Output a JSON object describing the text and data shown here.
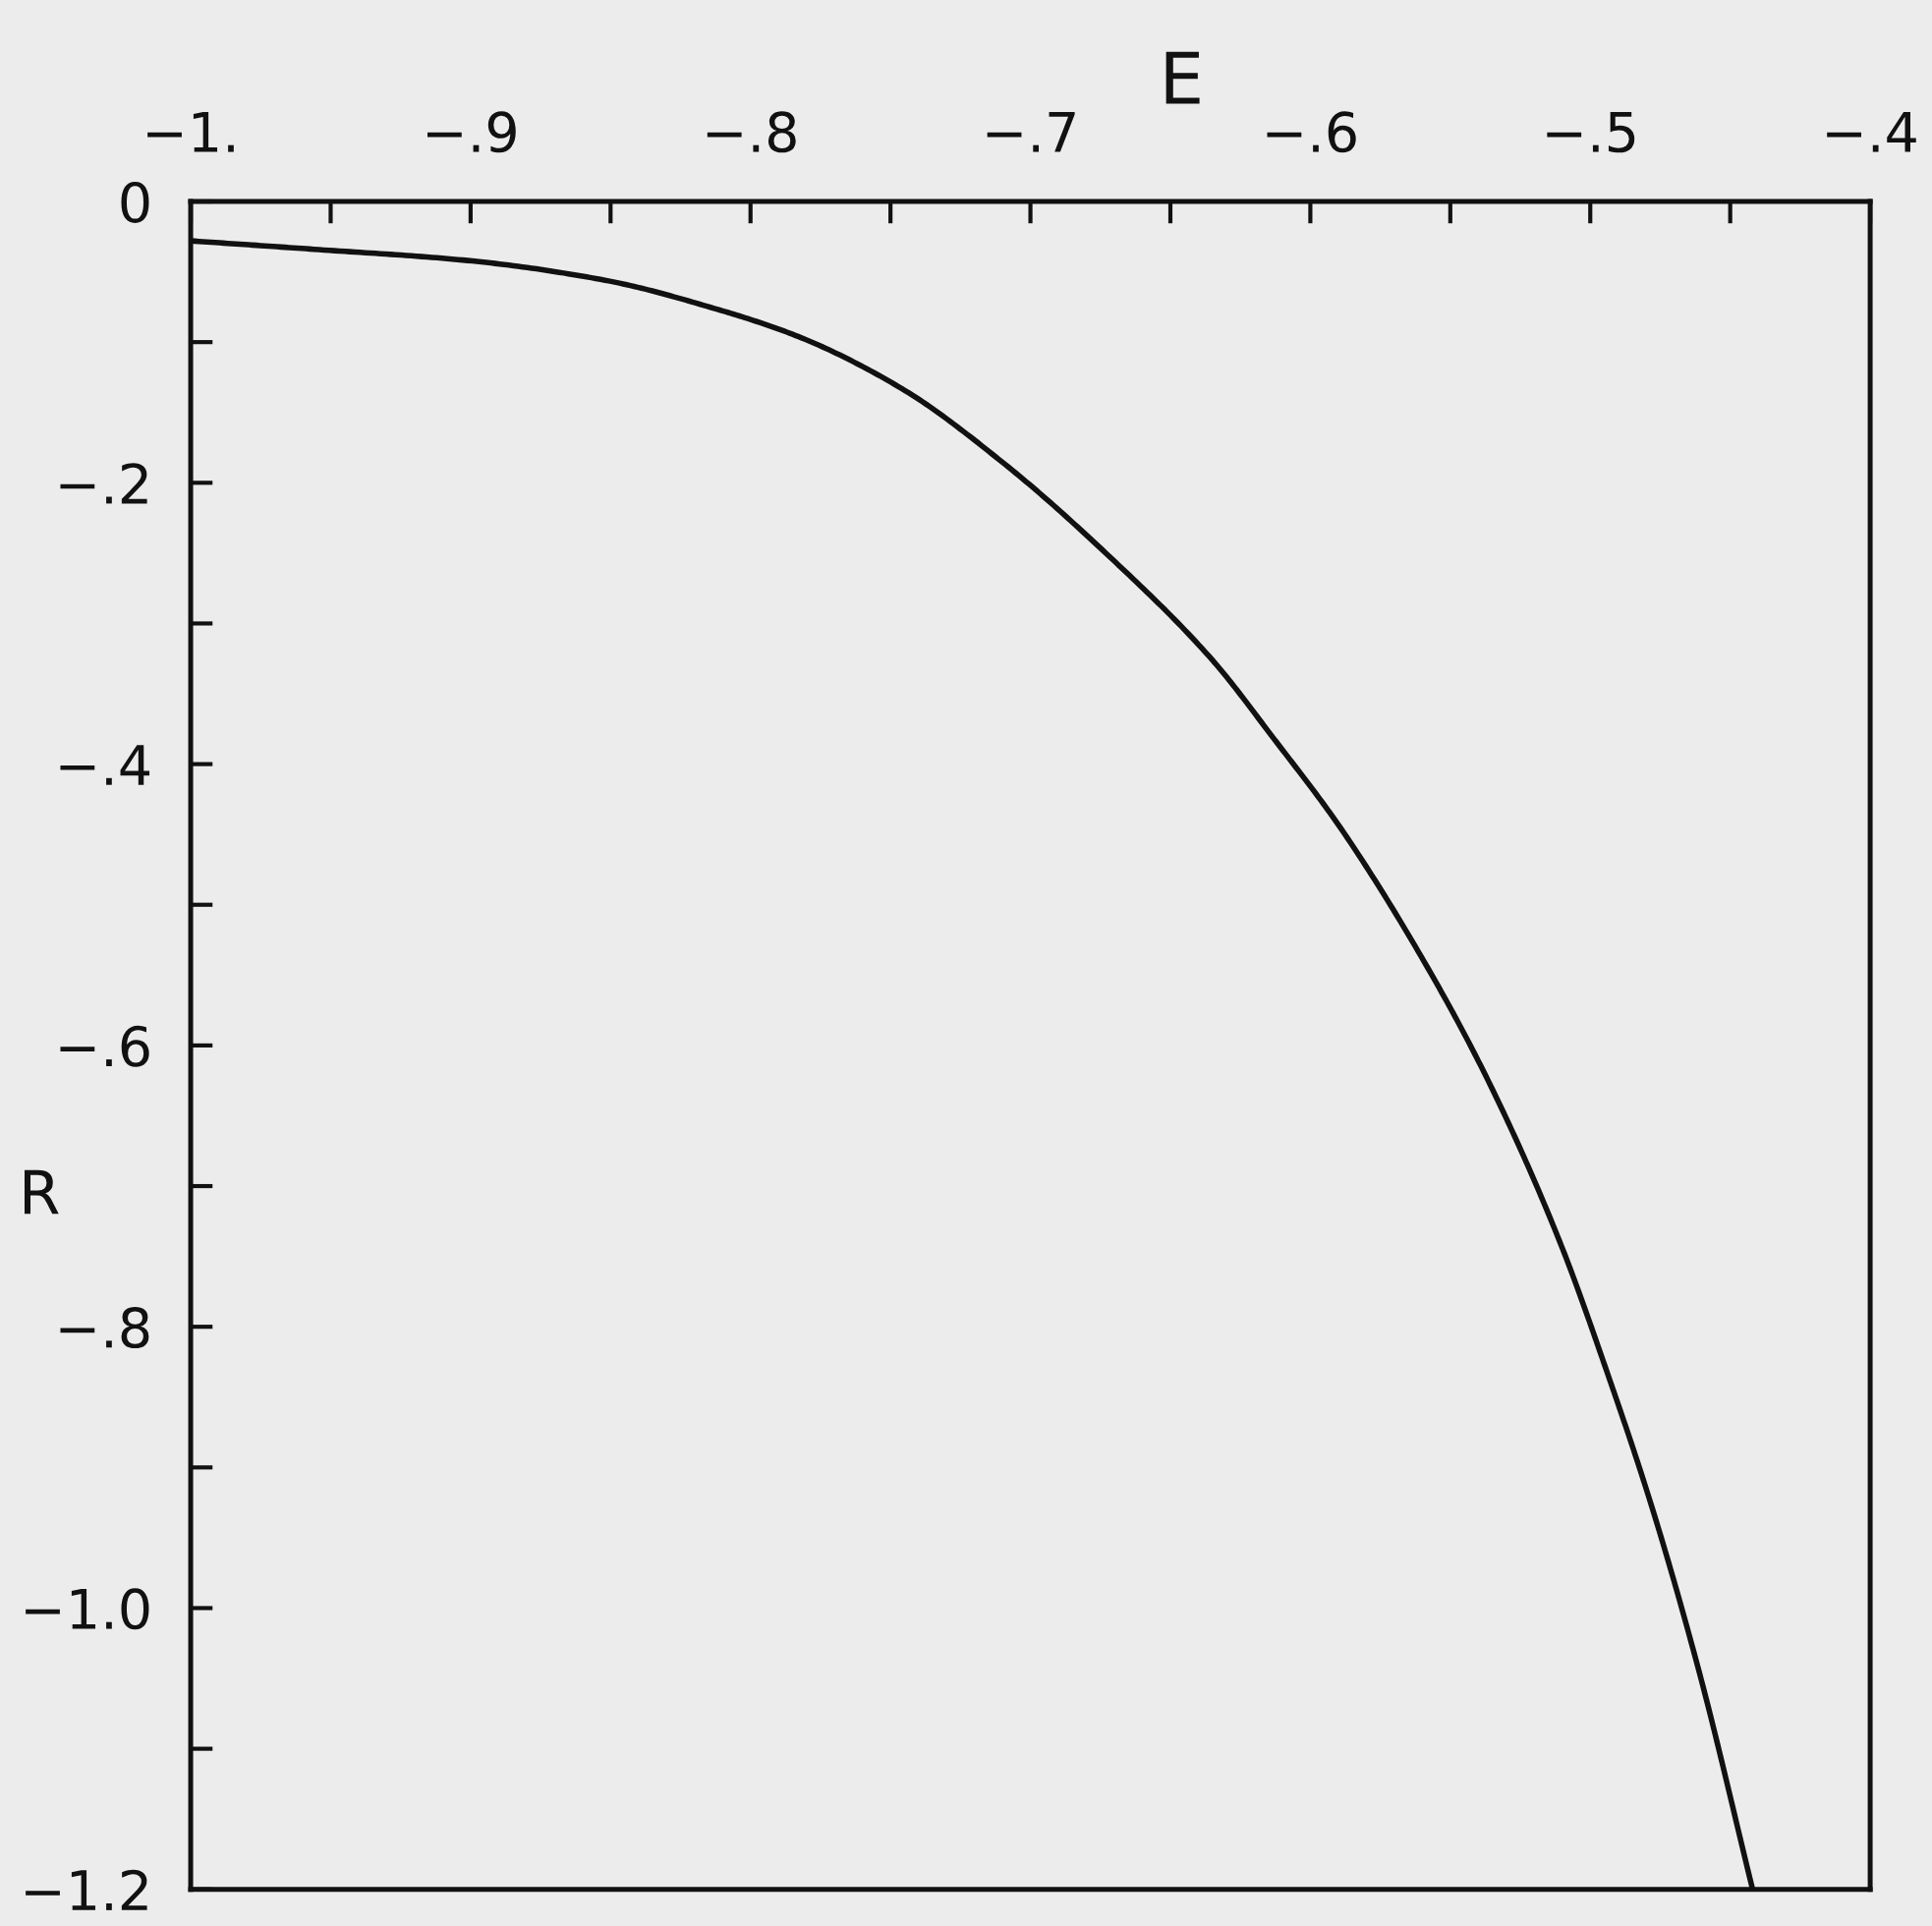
{
  "chart_data": {
    "type": "line",
    "xlabel": "E",
    "ylabel": "R",
    "line_style": "solid",
    "x": [
      -1.0,
      -0.956,
      -0.901,
      -0.852,
      -0.813,
      -0.783,
      -0.746,
      -0.709,
      -0.672,
      -0.635,
      -0.613,
      -0.589,
      -0.556,
      -0.535,
      -0.511,
      -0.493,
      -0.478,
      -0.461,
      -0.442
    ],
    "series": [
      {
        "color": "#111111",
        "values": [
          -0.028,
          -0.034,
          -0.042,
          -0.056,
          -0.076,
          -0.096,
          -0.133,
          -0.187,
          -0.252,
          -0.326,
          -0.382,
          -0.446,
          -0.552,
          -0.631,
          -0.739,
          -0.838,
          -0.928,
          -1.046,
          -1.2
        ]
      }
    ],
    "xlim": [
      -1.0,
      -0.4
    ],
    "xticks": [
      {
        "value": -1.0,
        "label": "−1."
      },
      {
        "value": -0.95,
        "label": null
      },
      {
        "value": -0.9,
        "label": "−.9"
      },
      {
        "value": -0.85,
        "label": null
      },
      {
        "value": -0.8,
        "label": "−.8"
      },
      {
        "value": -0.75,
        "label": null
      },
      {
        "value": -0.7,
        "label": "−.7"
      },
      {
        "value": -0.65,
        "label": null
      },
      {
        "value": -0.6,
        "label": "−.6"
      },
      {
        "value": -0.55,
        "label": null
      },
      {
        "value": -0.5,
        "label": "−.5"
      },
      {
        "value": -0.45,
        "label": null
      },
      {
        "value": -0.4,
        "label": "−.4"
      }
    ],
    "ylim": [
      -1.2,
      0
    ],
    "yticks": [
      0,
      {
        "value": -0.1,
        "label": null
      },
      {
        "value": -0.2,
        "label": "−.2"
      },
      {
        "value": -0.3,
        "label": null
      },
      {
        "value": -0.4,
        "label": "−.4"
      },
      {
        "value": -0.5,
        "label": null
      },
      {
        "value": -0.6,
        "label": "−.6"
      },
      {
        "value": -0.7,
        "label": null
      },
      {
        "value": -0.8,
        "label": "−.8"
      },
      {
        "value": -0.9,
        "label": null
      },
      {
        "value": -1.0,
        "label": "−1.0"
      },
      {
        "value": -1.1,
        "label": null
      },
      {
        "value": -1.2,
        "label": "−1.2"
      }
    ]
  }
}
